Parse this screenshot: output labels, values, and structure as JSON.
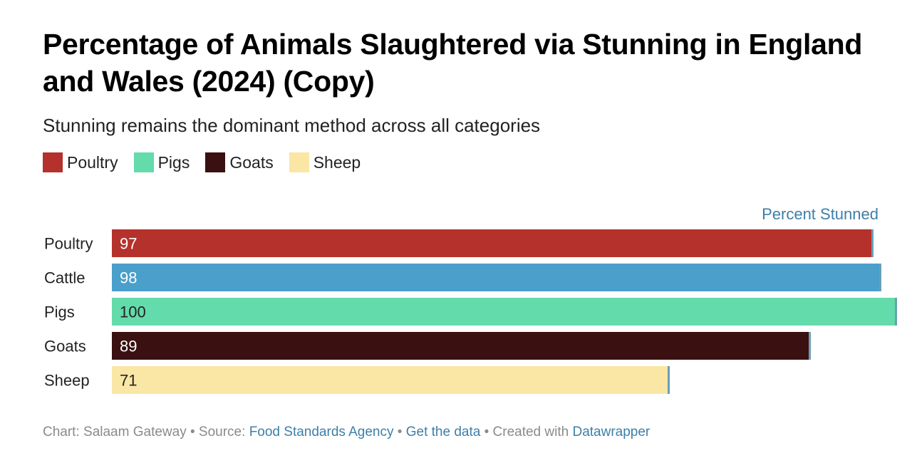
{
  "title": "Percentage of Animals Slaughtered via Stunning in England and Wales (2024) (Copy)",
  "subtitle": "Stunning remains the dominant method across all categories",
  "legend": [
    {
      "label": "Poultry",
      "color": "#b5312b"
    },
    {
      "label": "Pigs",
      "color": "#63dbab"
    },
    {
      "label": "Goats",
      "color": "#3a1010"
    },
    {
      "label": "Sheep",
      "color": "#fae6a5"
    }
  ],
  "column_header": "Percent Stunned",
  "chart_data": {
    "type": "bar",
    "orientation": "horizontal",
    "categories": [
      "Poultry",
      "Cattle",
      "Pigs",
      "Goats",
      "Sheep"
    ],
    "values": [
      97,
      98,
      100,
      89,
      71
    ],
    "colors": [
      "#b5312b",
      "#4a9fcb",
      "#63dbab",
      "#3a1010",
      "#fae6a5"
    ],
    "label_colors": [
      "#ffffff",
      "#ffffff",
      "#222222",
      "#ffffff",
      "#222222"
    ],
    "value_label": "Percent Stunned",
    "xlim": [
      0,
      100
    ]
  },
  "footer": {
    "chart_by": "Chart: Salaam Gateway",
    "source_prefix": "Source:",
    "source_link": "Food Standards Agency",
    "get_data": "Get the data",
    "created_with_prefix": "Created with",
    "created_with_link": "Datawrapper",
    "separator": "•"
  }
}
